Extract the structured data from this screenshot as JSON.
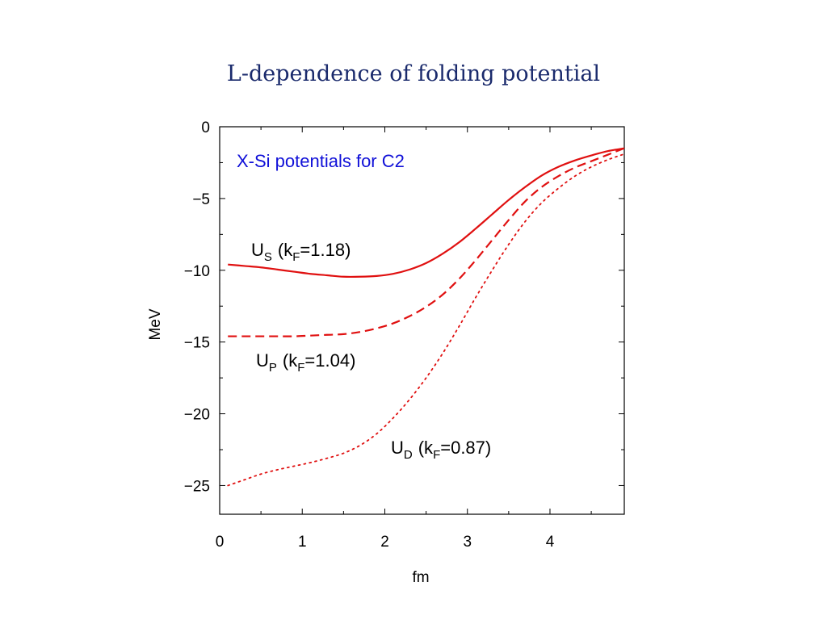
{
  "slide": {
    "title": "L-dependence of folding potential"
  },
  "chart_data": {
    "type": "line",
    "title": "X-Si potentials for C2",
    "xlabel": "fm",
    "ylabel": "MeV",
    "xlim": [
      0,
      4.9
    ],
    "ylim": [
      -27,
      0
    ],
    "x_ticks": [
      0,
      1,
      2,
      3,
      4
    ],
    "y_ticks": [
      0,
      -5,
      -10,
      -15,
      -20,
      -25
    ],
    "grid": false,
    "colors": {
      "series": "#e01010",
      "box_title": "#1010d8"
    },
    "series": [
      {
        "name": "U_S",
        "label_main": "U",
        "label_sub": "S",
        "kf_text": "(k",
        "kf_sub": "F",
        "kf_value": "=1.18)",
        "style": "solid",
        "x": [
          0.1,
          0.3,
          0.5,
          0.7,
          0.9,
          1.1,
          1.3,
          1.5,
          1.7,
          1.9,
          2.1,
          2.3,
          2.5,
          2.7,
          2.9,
          3.1,
          3.3,
          3.5,
          3.7,
          3.9,
          4.1,
          4.3,
          4.5,
          4.7,
          4.9
        ],
        "y": [
          -9.6,
          -9.7,
          -9.8,
          -9.95,
          -10.1,
          -10.25,
          -10.35,
          -10.45,
          -10.45,
          -10.4,
          -10.25,
          -9.95,
          -9.5,
          -8.85,
          -8.05,
          -7.1,
          -6.1,
          -5.1,
          -4.2,
          -3.4,
          -2.8,
          -2.35,
          -2.0,
          -1.7,
          -1.5
        ]
      },
      {
        "name": "U_P",
        "label_main": "U",
        "label_sub": "P",
        "kf_text": "(k",
        "kf_sub": "F",
        "kf_value": "=1.04)",
        "style": "dashed",
        "x": [
          0.1,
          0.3,
          0.5,
          0.7,
          0.9,
          1.1,
          1.3,
          1.5,
          1.7,
          1.9,
          2.1,
          2.3,
          2.5,
          2.7,
          2.9,
          3.1,
          3.3,
          3.5,
          3.7,
          3.9,
          4.1,
          4.3,
          4.5,
          4.7,
          4.9
        ],
        "y": [
          -14.6,
          -14.6,
          -14.6,
          -14.6,
          -14.6,
          -14.55,
          -14.5,
          -14.45,
          -14.3,
          -14.05,
          -13.7,
          -13.2,
          -12.55,
          -11.7,
          -10.6,
          -9.3,
          -7.9,
          -6.5,
          -5.2,
          -4.2,
          -3.45,
          -2.85,
          -2.4,
          -1.95,
          -1.5
        ]
      },
      {
        "name": "U_D",
        "label_main": "U",
        "label_sub": "D",
        "kf_text": "(k",
        "kf_sub": "F",
        "kf_value": "=0.87)",
        "style": "dotted",
        "x": [
          0.1,
          0.3,
          0.5,
          0.7,
          0.9,
          1.1,
          1.3,
          1.5,
          1.7,
          1.9,
          2.1,
          2.3,
          2.5,
          2.7,
          2.9,
          3.1,
          3.3,
          3.5,
          3.7,
          3.9,
          4.1,
          4.3,
          4.5,
          4.7,
          4.9
        ],
        "y": [
          -25.0,
          -24.6,
          -24.2,
          -23.9,
          -23.65,
          -23.4,
          -23.1,
          -22.75,
          -22.2,
          -21.4,
          -20.3,
          -19.0,
          -17.5,
          -15.8,
          -13.9,
          -11.9,
          -10.0,
          -8.2,
          -6.6,
          -5.3,
          -4.3,
          -3.45,
          -2.8,
          -2.3,
          -1.9
        ]
      }
    ]
  }
}
